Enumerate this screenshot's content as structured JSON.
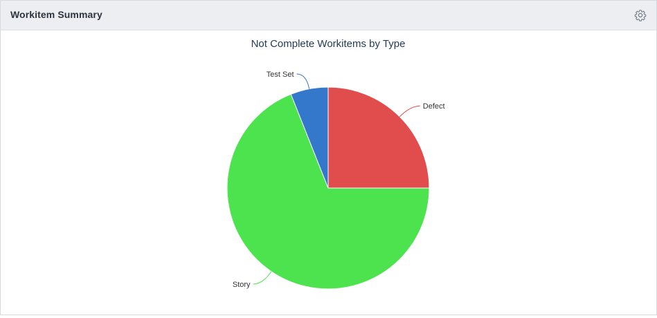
{
  "panel": {
    "title": "Workitem Summary",
    "settings_icon": "gear-icon"
  },
  "chart_data": {
    "type": "pie",
    "title": "Not Complete Workitems by Type",
    "slices": [
      {
        "label": "Defect",
        "value": 25,
        "color": "#e14c4c"
      },
      {
        "label": "Story",
        "value": 69,
        "color": "#4ce34e"
      },
      {
        "label": "Test Set",
        "value": 6,
        "color": "#3478cc"
      }
    ]
  }
}
